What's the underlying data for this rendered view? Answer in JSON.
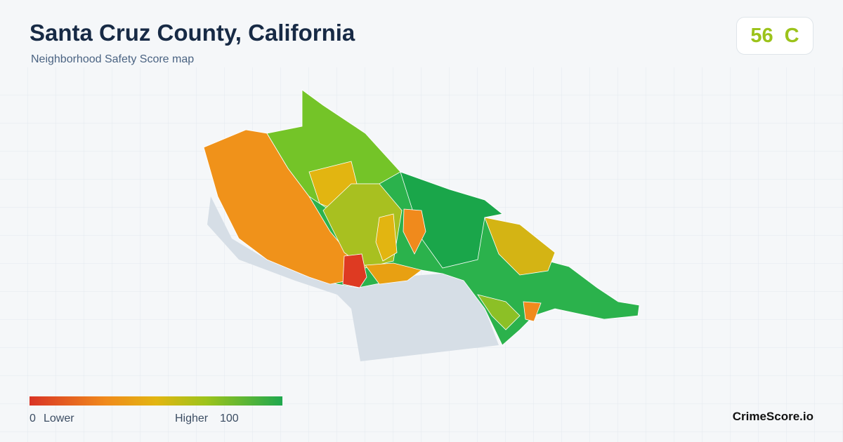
{
  "header": {
    "title": "Santa Cruz County, California",
    "subtitle": "Neighborhood Safety Score map"
  },
  "score": {
    "value": 56,
    "grade": "C"
  },
  "legend": {
    "min": 0,
    "min_label": "Lower",
    "max_label": "Higher",
    "max": 100
  },
  "brand": "CrimeScore.io"
}
